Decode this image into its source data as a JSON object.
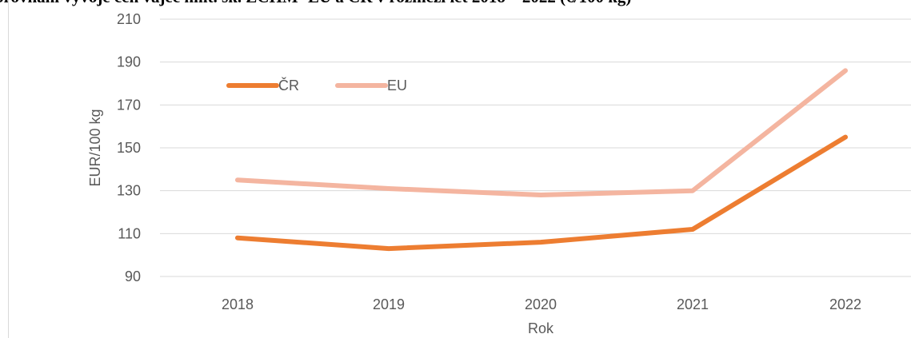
{
  "chart_data": {
    "type": "line",
    "title": "orovnání vývoje cen vajec hmt. sk. ZCHM- EU a ČR v rozmezí let 2018 – 2022 (€/100 kg)",
    "xlabel": "Rok",
    "ylabel": "EUR/100 kg",
    "categories": [
      "2018",
      "2019",
      "2020",
      "2021",
      "2022"
    ],
    "ylim": [
      90,
      210
    ],
    "yticks": [
      90,
      110,
      130,
      150,
      170,
      190,
      210
    ],
    "grid": true,
    "legend_position": "top-left",
    "series": [
      {
        "name": "ČR",
        "color": "#ED7D31",
        "values": [
          108,
          103,
          106,
          112,
          155
        ]
      },
      {
        "name": "EU",
        "color": "#F4B5A0",
        "values": [
          135,
          131,
          128,
          130,
          186
        ]
      }
    ]
  }
}
